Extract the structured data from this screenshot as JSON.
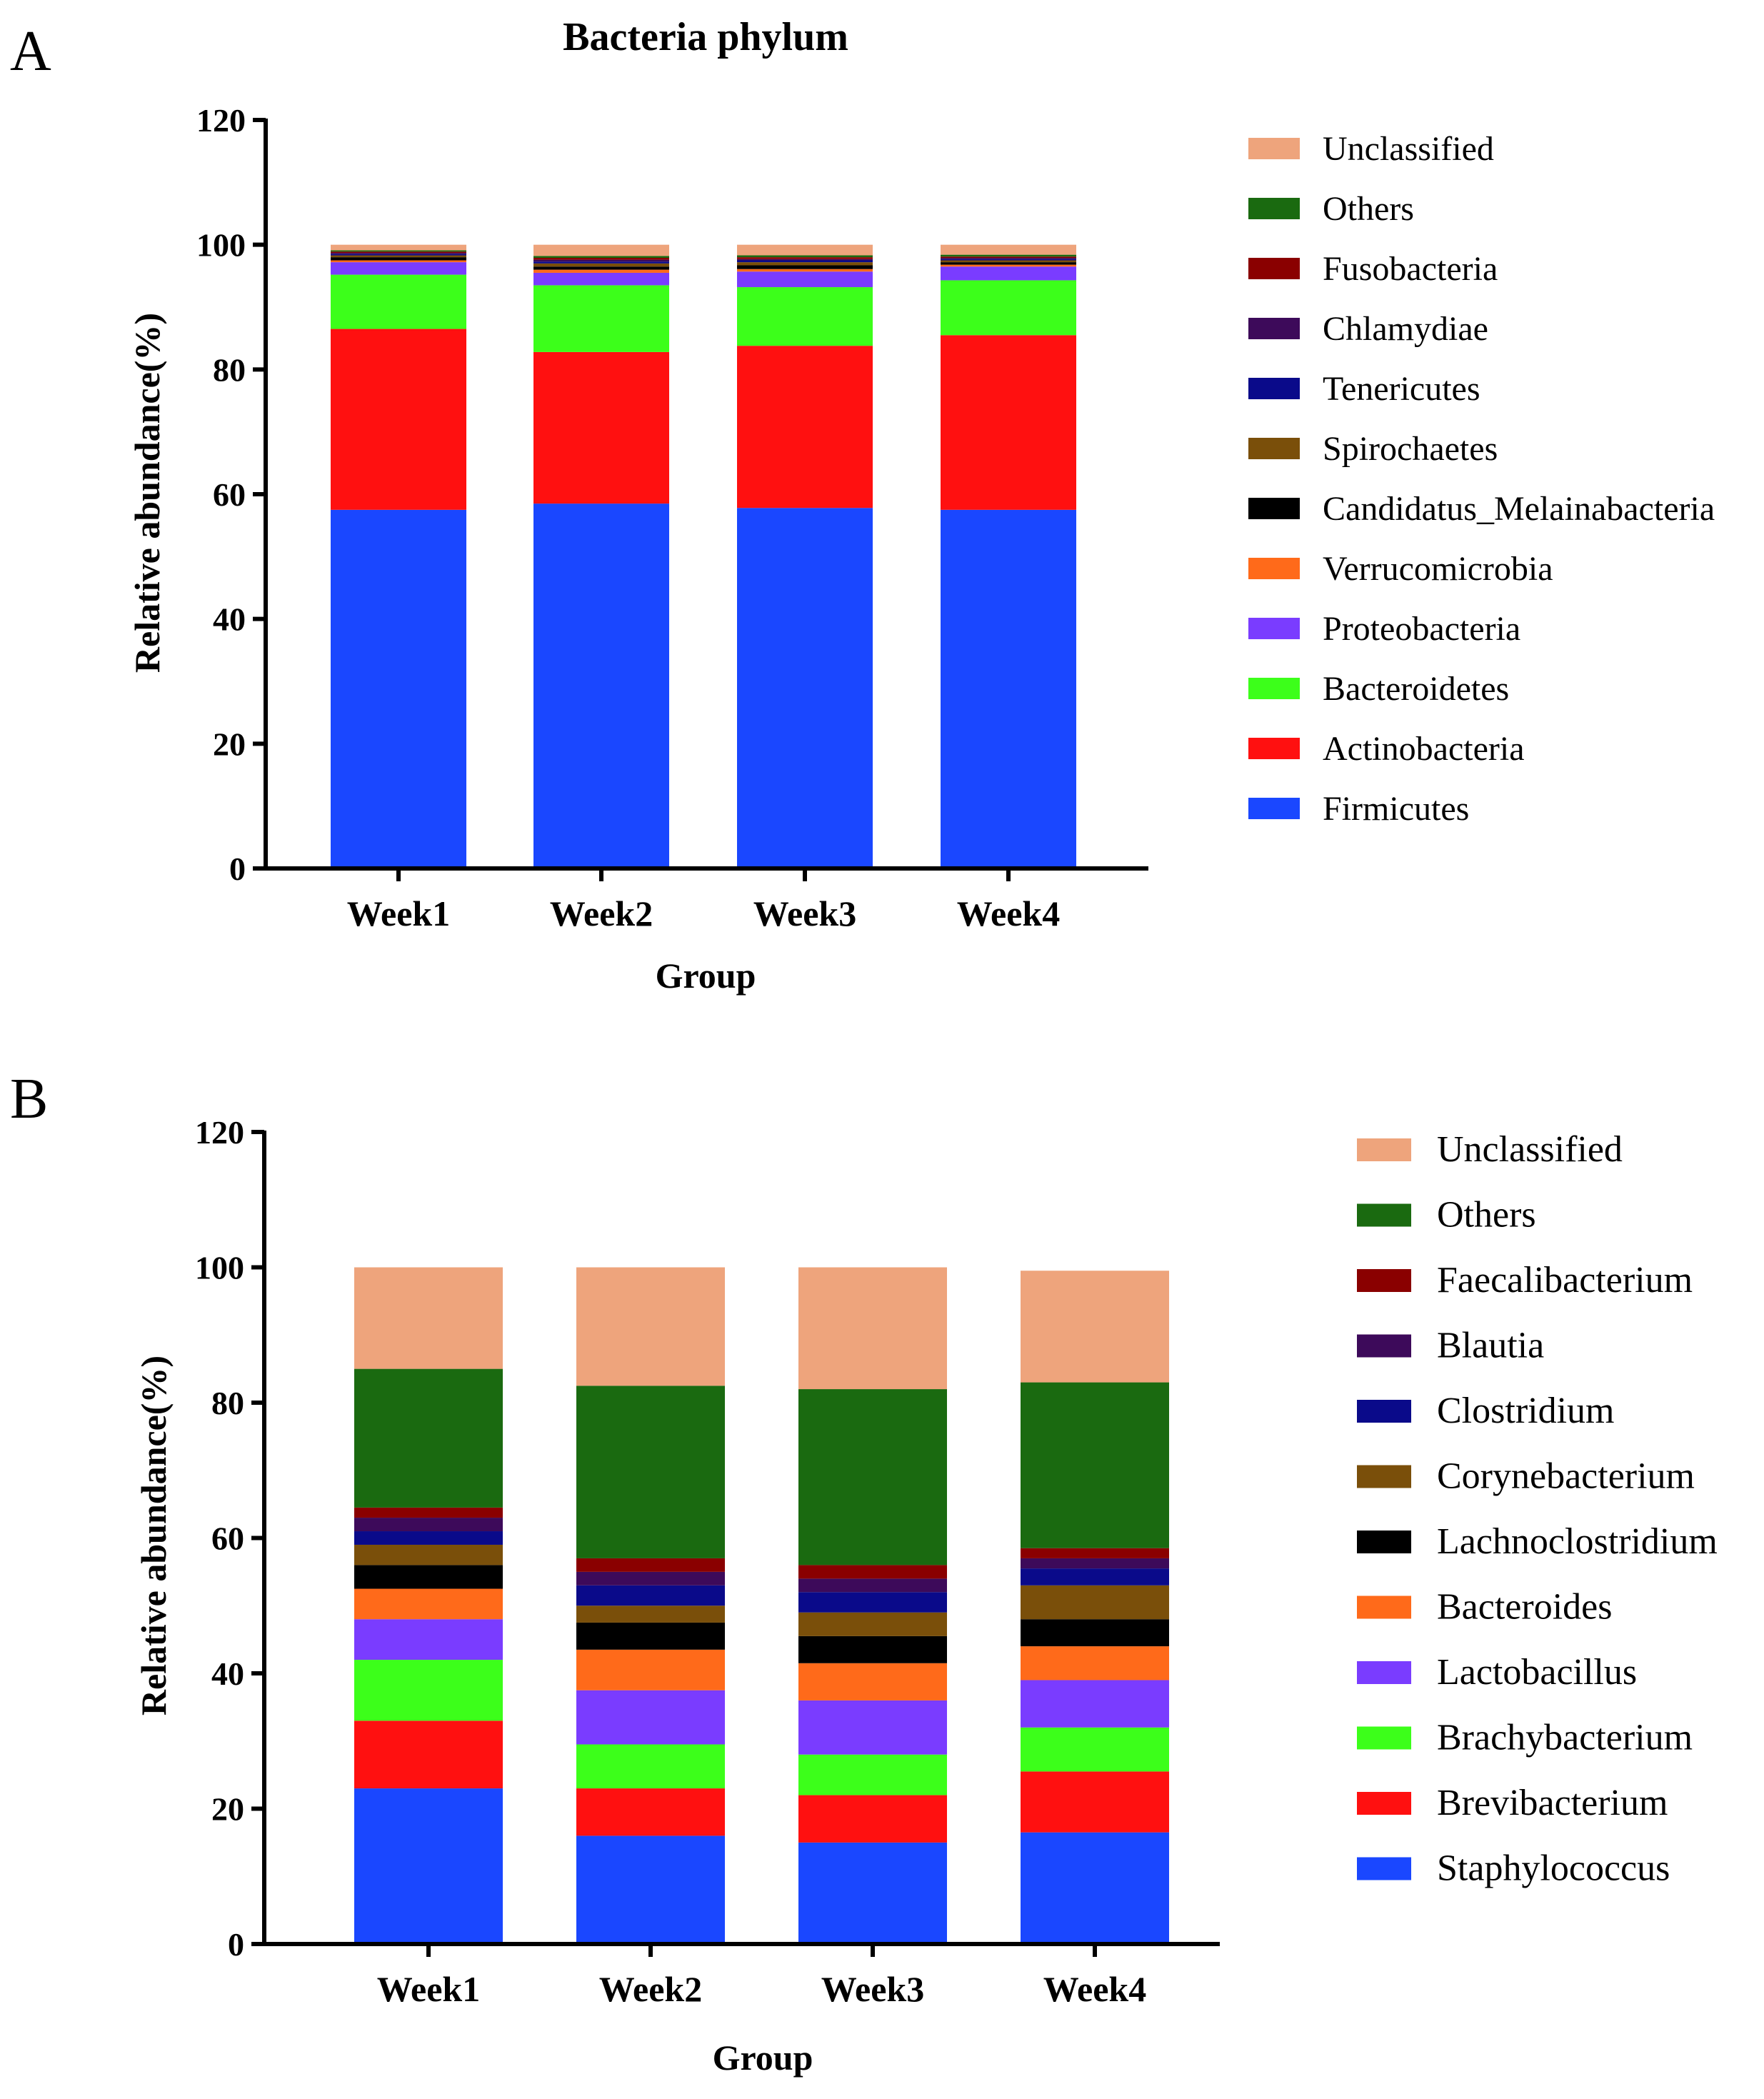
{
  "chart_data": [
    {
      "panel": "A",
      "type": "bar",
      "stacked": true,
      "title": "Bacteria phylum",
      "xlabel": "Group",
      "ylabel": "Relative abundance(%)",
      "ylim": [
        0,
        120
      ],
      "yticks": [
        0,
        20,
        40,
        60,
        80,
        100,
        120
      ],
      "categories": [
        "Week1",
        "Week2",
        "Week3",
        "Week4"
      ],
      "legend_position": "right",
      "series": [
        {
          "name": "Firmicutes",
          "color": "#1a47ff",
          "values": [
            57.5,
            58.5,
            57.8,
            57.5
          ]
        },
        {
          "name": "Actinobacteria",
          "color": "#ff1010",
          "values": [
            29.0,
            24.3,
            26.0,
            28.0
          ]
        },
        {
          "name": "Bacteroidetes",
          "color": "#3cff1a",
          "values": [
            8.7,
            10.7,
            9.4,
            8.8
          ]
        },
        {
          "name": "Proteobacteria",
          "color": "#7a3cff",
          "values": [
            2.0,
            2.0,
            2.5,
            2.2
          ]
        },
        {
          "name": "Verrucomicrobia",
          "color": "#ff6a1a",
          "values": [
            0.3,
            0.5,
            0.4,
            0.3
          ]
        },
        {
          "name": "Candidatus_Melainabacteria",
          "color": "#000000",
          "values": [
            0.5,
            0.5,
            0.6,
            0.4
          ]
        },
        {
          "name": "Spirochaetes",
          "color": "#7a4f0a",
          "values": [
            0.3,
            0.5,
            0.5,
            0.3
          ]
        },
        {
          "name": "Tenericutes",
          "color": "#0a0a8a",
          "values": [
            0.2,
            0.3,
            0.3,
            0.2
          ]
        },
        {
          "name": "Chlamydiae",
          "color": "#3d0a5a",
          "values": [
            0.2,
            0.3,
            0.2,
            0.2
          ]
        },
        {
          "name": "Fusobacteria",
          "color": "#8a0000",
          "values": [
            0.2,
            0.3,
            0.3,
            0.2
          ]
        },
        {
          "name": "Others",
          "color": "#1a6a10",
          "values": [
            0.2,
            0.3,
            0.3,
            0.3
          ]
        },
        {
          "name": "Unclassified",
          "color": "#eea47c",
          "values": [
            0.9,
            1.8,
            1.7,
            1.6
          ]
        }
      ]
    },
    {
      "panel": "B",
      "type": "bar",
      "stacked": true,
      "title": "",
      "xlabel": "Group",
      "ylabel": "Relative abundance(%)",
      "ylim": [
        0,
        120
      ],
      "yticks": [
        0,
        20,
        40,
        60,
        80,
        100,
        120
      ],
      "categories": [
        "Week1",
        "Week2",
        "Week3",
        "Week4"
      ],
      "legend_position": "right",
      "series": [
        {
          "name": "Staphylococcus",
          "color": "#1a47ff",
          "values": [
            23.0,
            16.0,
            15.0,
            16.5
          ]
        },
        {
          "name": "Brevibacterium",
          "color": "#ff1010",
          "values": [
            10.0,
            7.0,
            7.0,
            9.0
          ]
        },
        {
          "name": "Brachybacterium",
          "color": "#3cff1a",
          "values": [
            9.0,
            6.5,
            6.0,
            6.5
          ]
        },
        {
          "name": "Lactobacillus",
          "color": "#7a3cff",
          "values": [
            6.0,
            8.0,
            8.0,
            7.0
          ]
        },
        {
          "name": "Bacteroides",
          "color": "#ff6a1a",
          "values": [
            4.5,
            6.0,
            5.5,
            5.0
          ]
        },
        {
          "name": "Lachnoclostridium",
          "color": "#000000",
          "values": [
            3.5,
            4.0,
            4.0,
            4.0
          ]
        },
        {
          "name": "Corynebacterium",
          "color": "#7a4f0a",
          "values": [
            3.0,
            2.5,
            3.5,
            5.0
          ]
        },
        {
          "name": "Clostridium",
          "color": "#0a0a8a",
          "values": [
            2.0,
            3.0,
            3.0,
            2.5
          ]
        },
        {
          "name": "Blautia",
          "color": "#3d0a5a",
          "values": [
            2.0,
            2.0,
            2.0,
            1.5
          ]
        },
        {
          "name": "Faecalibacterium",
          "color": "#8a0000",
          "values": [
            1.5,
            2.0,
            2.0,
            1.5
          ]
        },
        {
          "name": "Others",
          "color": "#1a6a10",
          "values": [
            20.5,
            25.5,
            26.0,
            24.5
          ]
        },
        {
          "name": "Unclassified",
          "color": "#eea47c",
          "values": [
            15.0,
            17.5,
            18.0,
            16.5
          ]
        }
      ]
    }
  ]
}
